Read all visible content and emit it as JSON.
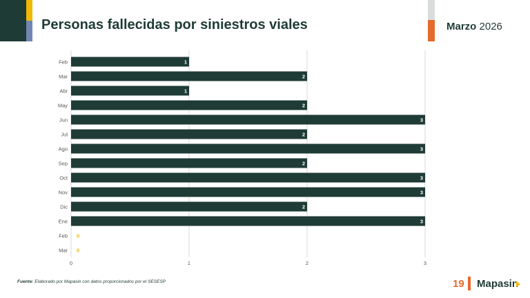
{
  "header": {
    "title": "Personas fallecidas por siniestros viales",
    "period_month": "Marzo",
    "period_year": "2026"
  },
  "footer": {
    "source_label": "Fuente:",
    "source_text": "Elaborado por Mapasin con datos proporcionados por el SESESP",
    "page_number": "19",
    "brand": "Mapasin"
  },
  "colors": {
    "bar": "#1f3b36",
    "zero_label": "#f2b705",
    "accent_orange": "#e56a2e",
    "grid": "#d9d9d9"
  },
  "chart_data": {
    "type": "bar",
    "orientation": "horizontal",
    "categories": [
      "Feb",
      "Mar",
      "Abr",
      "May",
      "Jun",
      "Jul",
      "Ago",
      "Sep",
      "Oct",
      "Nov",
      "Dic",
      "Ene",
      "Feb",
      "Mar"
    ],
    "values": [
      1,
      2,
      1,
      2,
      3,
      2,
      3,
      2,
      3,
      3,
      2,
      3,
      0,
      0
    ],
    "xlim": [
      0,
      3
    ],
    "xticks": [
      0,
      1,
      2,
      3
    ],
    "grid": true,
    "legend": "none",
    "title": ""
  }
}
